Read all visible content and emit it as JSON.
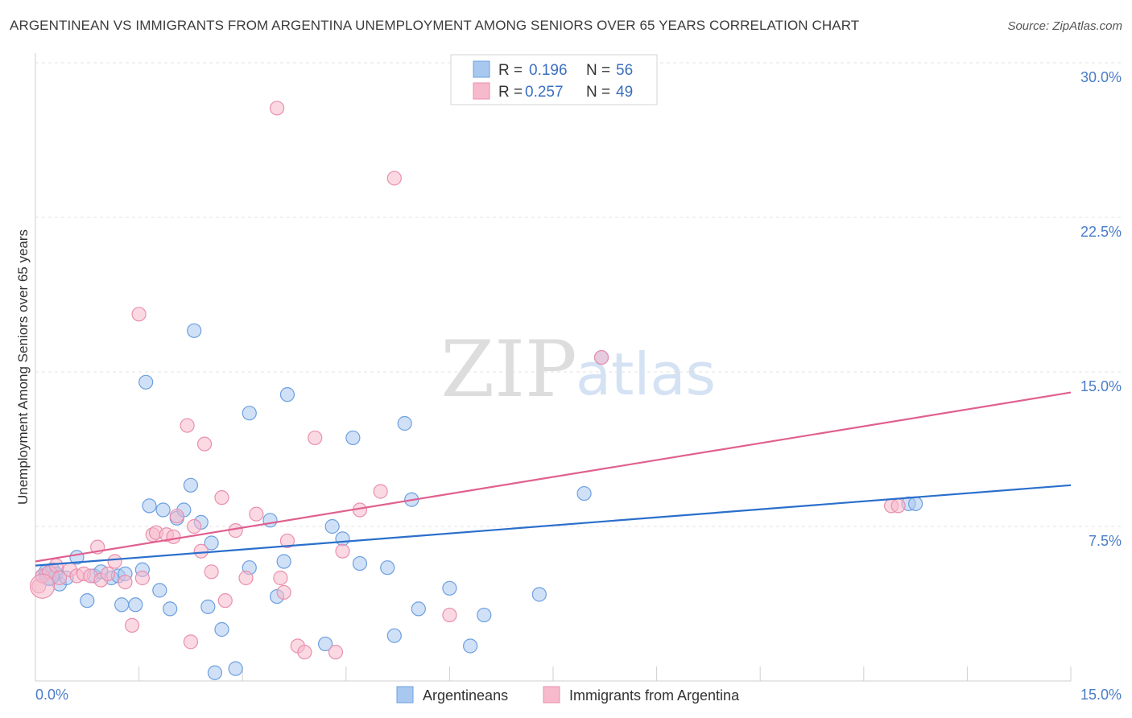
{
  "title": "ARGENTINEAN VS IMMIGRANTS FROM ARGENTINA UNEMPLOYMENT AMONG SENIORS OVER 65 YEARS CORRELATION CHART",
  "source": "Source: ZipAtlas.com",
  "watermark": {
    "zip": "ZIP",
    "atlas": "atlas"
  },
  "colors": {
    "blue_fill": "#a9c8f0",
    "blue_stroke": "#6d9fe0",
    "blue_line": "#2a6fcc",
    "pink_fill": "#f7b9cc",
    "pink_stroke": "#e98fae",
    "pink_line": "#e0608f",
    "axis_text": "#4a7cc8"
  },
  "legend": {
    "rows": [
      {
        "r_label": "R =",
        "r_value": "0.196",
        "n_label": "N =",
        "n_value": "56"
      },
      {
        "r_label": "R =",
        "r_value": "0.257",
        "n_label": "N =",
        "n_value": "49"
      }
    ]
  },
  "bottom_legend": [
    "Argentineans",
    "Immigrants from Argentina"
  ],
  "chart_data": {
    "type": "scatter",
    "title": "ARGENTINEAN VS IMMIGRANTS FROM ARGENTINA UNEMPLOYMENT AMONG SENIORS OVER 65 YEARS CORRELATION CHART",
    "xlabel": "",
    "ylabel": "Unemployment Among Seniors over 65 years",
    "xlim": [
      0,
      15
    ],
    "ylim": [
      0,
      30
    ],
    "x_tick_labels": [
      "0.0%",
      "15.0%"
    ],
    "y_ticks": [
      7.5,
      15,
      22.5,
      30
    ],
    "y_tick_labels": [
      "7.5%",
      "15.0%",
      "22.5%",
      "30.0%"
    ],
    "grid": true,
    "legend_position": "top-center",
    "series": [
      {
        "name": "Argentineans",
        "r": 0.196,
        "n": 56,
        "trend": {
          "x": [
            0,
            15
          ],
          "y": [
            5.6,
            9.5
          ]
        },
        "points": [
          [
            0.1,
            5.1
          ],
          [
            0.15,
            5.3
          ],
          [
            0.2,
            5.0
          ],
          [
            0.25,
            5.4
          ],
          [
            0.3,
            5.2
          ],
          [
            0.35,
            4.7
          ],
          [
            0.45,
            5.0
          ],
          [
            0.6,
            6.0
          ],
          [
            0.75,
            3.9
          ],
          [
            0.85,
            5.1
          ],
          [
            0.95,
            5.3
          ],
          [
            1.1,
            5.0
          ],
          [
            1.2,
            5.1
          ],
          [
            1.25,
            3.7
          ],
          [
            1.3,
            5.2
          ],
          [
            1.45,
            3.7
          ],
          [
            1.55,
            5.4
          ],
          [
            1.6,
            14.5
          ],
          [
            1.65,
            8.5
          ],
          [
            1.8,
            4.4
          ],
          [
            1.85,
            8.3
          ],
          [
            1.95,
            3.5
          ],
          [
            2.05,
            7.9
          ],
          [
            2.15,
            8.3
          ],
          [
            2.25,
            9.5
          ],
          [
            2.3,
            17.0
          ],
          [
            2.4,
            7.7
          ],
          [
            2.5,
            3.6
          ],
          [
            2.55,
            6.7
          ],
          [
            2.6,
            0.4
          ],
          [
            2.7,
            2.5
          ],
          [
            2.9,
            0.6
          ],
          [
            3.1,
            13.0
          ],
          [
            3.1,
            5.5
          ],
          [
            3.4,
            7.8
          ],
          [
            3.5,
            4.1
          ],
          [
            3.6,
            5.8
          ],
          [
            3.65,
            13.9
          ],
          [
            4.2,
            1.8
          ],
          [
            4.3,
            7.5
          ],
          [
            4.45,
            6.9
          ],
          [
            4.6,
            11.8
          ],
          [
            4.7,
            5.7
          ],
          [
            5.1,
            5.5
          ],
          [
            5.2,
            2.2
          ],
          [
            5.35,
            12.5
          ],
          [
            5.45,
            8.8
          ],
          [
            5.55,
            3.5
          ],
          [
            6.0,
            4.5
          ],
          [
            6.3,
            1.7
          ],
          [
            6.5,
            3.2
          ],
          [
            7.3,
            4.2
          ],
          [
            7.95,
            9.1
          ],
          [
            8.2,
            15.7
          ],
          [
            12.65,
            8.6
          ],
          [
            12.75,
            8.6
          ]
        ]
      },
      {
        "name": "Immigrants from Argentina",
        "r": 0.257,
        "n": 49,
        "trend": {
          "x": [
            0,
            15
          ],
          "y": [
            5.8,
            14.0
          ]
        },
        "points": [
          [
            0.05,
            4.6
          ],
          [
            0.1,
            5.1
          ],
          [
            0.2,
            5.3
          ],
          [
            0.3,
            5.6
          ],
          [
            0.35,
            5.0
          ],
          [
            0.5,
            5.4
          ],
          [
            0.6,
            5.1
          ],
          [
            0.7,
            5.2
          ],
          [
            0.8,
            5.1
          ],
          [
            0.9,
            6.5
          ],
          [
            0.95,
            4.9
          ],
          [
            1.05,
            5.2
          ],
          [
            1.15,
            5.8
          ],
          [
            1.3,
            4.8
          ],
          [
            1.4,
            2.7
          ],
          [
            1.5,
            17.8
          ],
          [
            1.55,
            5.0
          ],
          [
            1.7,
            7.1
          ],
          [
            1.75,
            7.2
          ],
          [
            1.9,
            7.1
          ],
          [
            2.0,
            7.0
          ],
          [
            2.05,
            8.0
          ],
          [
            2.2,
            12.4
          ],
          [
            2.25,
            1.9
          ],
          [
            2.3,
            7.5
          ],
          [
            2.4,
            6.3
          ],
          [
            2.45,
            11.5
          ],
          [
            2.55,
            5.3
          ],
          [
            2.7,
            8.9
          ],
          [
            2.75,
            3.9
          ],
          [
            2.9,
            7.3
          ],
          [
            3.05,
            5.0
          ],
          [
            3.2,
            8.1
          ],
          [
            3.5,
            27.8
          ],
          [
            3.55,
            5.0
          ],
          [
            3.6,
            4.3
          ],
          [
            3.65,
            6.8
          ],
          [
            3.8,
            1.7
          ],
          [
            3.9,
            1.4
          ],
          [
            4.05,
            11.8
          ],
          [
            4.35,
            1.4
          ],
          [
            4.45,
            6.3
          ],
          [
            4.7,
            8.3
          ],
          [
            5.0,
            9.2
          ],
          [
            5.2,
            24.4
          ],
          [
            6.0,
            3.2
          ],
          [
            8.2,
            15.7
          ],
          [
            12.4,
            8.5
          ],
          [
            12.5,
            8.5
          ]
        ]
      }
    ]
  }
}
